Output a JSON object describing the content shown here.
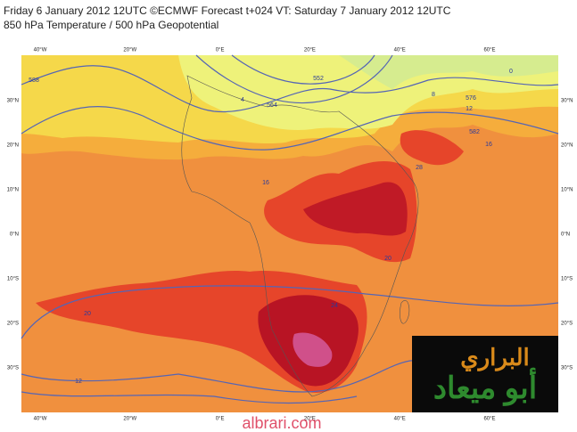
{
  "header": {
    "line1": "Friday 6 January 2012 12UTC ©ECMWF Forecast t+024 VT: Saturday 7 January 2012 12UTC",
    "line2": "850 hPa Temperature / 500 hPa Geopotential"
  },
  "map": {
    "longitudes": [
      "40°W",
      "20°W",
      "0°E",
      "20°E",
      "40°E",
      "60°E"
    ],
    "latitudes": [
      "30°N",
      "20°N",
      "10°N",
      "0°N",
      "10°S",
      "20°S",
      "30°S"
    ],
    "contour_labels": [
      "576",
      "564",
      "552",
      "588",
      "0",
      "8",
      "4",
      "12",
      "16",
      "20",
      "24",
      "28",
      "582",
      "20",
      "16",
      "12"
    ]
  },
  "logo": {
    "line1": "البراري",
    "line2": "أبو ميعاد"
  },
  "watermark": "albrari.com"
}
